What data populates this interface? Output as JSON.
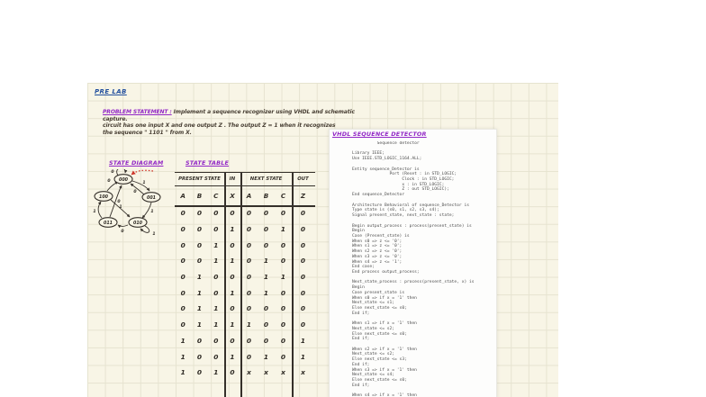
{
  "prelab": {
    "label": "PRE LAB"
  },
  "problem": {
    "heading": "PROBLEM STATEMENT :",
    "line1": "Implement a sequence recognizer using VHDL and schematic capture.",
    "line2": "circuit has one input X and one output Z . The output Z = 1 when it recognizes",
    "line3": "the sequence \" 1101 \" from X."
  },
  "state_diagram": {
    "title": "STATE DIAGRAM",
    "states": [
      {
        "id": "s0",
        "label": "000"
      },
      {
        "id": "s1",
        "label": "001"
      },
      {
        "id": "s2",
        "label": "010"
      },
      {
        "id": "s3",
        "label": "011"
      },
      {
        "id": "s4",
        "label": "100"
      }
    ],
    "edges": [
      {
        "from": "s0",
        "to": "s0",
        "label": "0"
      },
      {
        "from": "s0",
        "to": "s1",
        "label": "1"
      },
      {
        "from": "s1",
        "to": "s0",
        "label": "0"
      },
      {
        "from": "s1",
        "to": "s2",
        "label": "1"
      },
      {
        "from": "s2",
        "to": "s2",
        "label": "1"
      },
      {
        "from": "s2",
        "to": "s3",
        "label": "0"
      },
      {
        "from": "s3",
        "to": "s0",
        "label": "0"
      },
      {
        "from": "s3",
        "to": "s4",
        "label": "1"
      },
      {
        "from": "s4",
        "to": "s0",
        "label": "0"
      },
      {
        "from": "s4",
        "to": "s2",
        "label": "1"
      }
    ]
  },
  "state_table": {
    "title": "STATE TABLE",
    "groups": [
      "PRESENT STATE",
      "IN",
      "NEXT STATE",
      "OUT"
    ],
    "letters": [
      "A",
      "B",
      "C",
      "X",
      "A",
      "B",
      "C",
      "Z"
    ],
    "rows": [
      [
        "0",
        "0",
        "0",
        "0",
        "0",
        "0",
        "0",
        "0"
      ],
      [
        "0",
        "0",
        "0",
        "1",
        "0",
        "0",
        "1",
        "0"
      ],
      [
        "0",
        "0",
        "1",
        "0",
        "0",
        "0",
        "0",
        "0"
      ],
      [
        "0",
        "0",
        "1",
        "1",
        "0",
        "1",
        "0",
        "0"
      ],
      [
        "0",
        "1",
        "0",
        "0",
        "0",
        "1",
        "1",
        "0"
      ],
      [
        "0",
        "1",
        "0",
        "1",
        "0",
        "1",
        "0",
        "0"
      ],
      [
        "0",
        "1",
        "1",
        "0",
        "0",
        "0",
        "0",
        "0"
      ],
      [
        "0",
        "1",
        "1",
        "1",
        "1",
        "0",
        "0",
        "0"
      ],
      [
        "1",
        "0",
        "0",
        "0",
        "0",
        "0",
        "0",
        "1"
      ],
      [
        "1",
        "0",
        "0",
        "1",
        "0",
        "1",
        "0",
        "1"
      ],
      [
        "1",
        "0",
        "1",
        "0",
        "x",
        "x",
        "x",
        "x"
      ]
    ]
  },
  "vhdl": {
    "title": "VHDL SEQUENCE DETECTOR",
    "code_lines": [
      "          Sequence detector",
      "",
      "Library IEEE;",
      "Use IEEE.STD_LOGIC_1164.ALL;",
      "",
      "Entity sequence_Detector is",
      "               Port (Reset : in STD_LOGIC;",
      "                    Clock : in STD_LOGIC;",
      "                    x : in STD_LOGIC;",
      "                    Z : out STD_LOGIC);",
      "End sequence_Detector",
      "",
      "Architecture Behavioral of sequence_Detector is",
      "Type state is (s0, s1, s2, s3, s4);",
      "Signal present_state, next_state : state;",
      "",
      "Begin output_process : process(present_state) is",
      "Begin",
      "Case (Present_state) is",
      "When s0 => z <= '0';",
      "When s1 => z <= '0';",
      "When s2 => z <= '0';",
      "When s3 => z <= '0';",
      "When s4 => z <= '1';",
      "End case;",
      "End process output_process;",
      "",
      "Next_state_process : process(present_state, x) is",
      "Begin",
      "Case present_state is",
      "When s0 => if x = '1' then",
      "Next_state <= s1;",
      "Else next_state <= s0;",
      "End if;",
      "",
      "When s1 => if x = '1' then",
      "Next_state <= s2;",
      "Else next_state <= s0;",
      "End if;",
      "",
      "When s2 => if x = '1' then",
      "Next_state <= s2;",
      "Else next_state <= s3;",
      "End if;",
      "When s3 => if x = '1' then",
      "Next_state <= s4;",
      "Else next_state <= s0;",
      "End if;",
      "",
      "When s4 => if x = '1' then"
    ]
  },
  "colors": {
    "ink_dark": "#35302a",
    "ink_blue": "#23509e",
    "ink_purple": "#9227c6",
    "ink_red": "#cf352a",
    "paper": "#f8f5e6",
    "grid_line": "#e6e3d0",
    "panel_bg": "#fdfdfc"
  }
}
